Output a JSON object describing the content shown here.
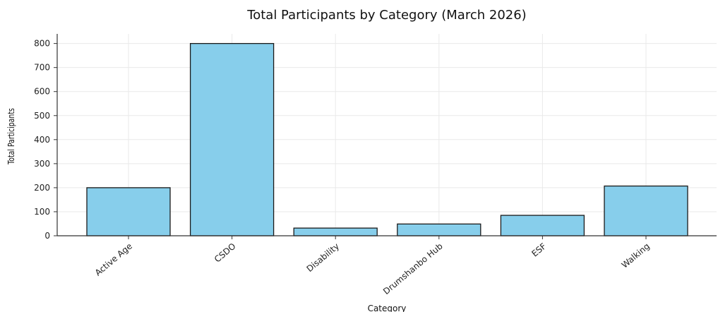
{
  "chart_data": {
    "type": "bar",
    "title": "Total Participants by Category (March 2026)",
    "xlabel": "Category",
    "ylabel": "Total Participants",
    "categories": [
      "Active Age",
      "CSDO",
      "Disability",
      "Drumshanbo Hub",
      "ESF",
      "Walking"
    ],
    "values": [
      200,
      800,
      32,
      49,
      85,
      207
    ],
    "ylim": [
      0,
      840
    ],
    "yticks": [
      0,
      100,
      200,
      300,
      400,
      500,
      600,
      700,
      800
    ],
    "grid": true,
    "bar_color": "#87CEEB",
    "edge_color": "#1a1a1a"
  }
}
